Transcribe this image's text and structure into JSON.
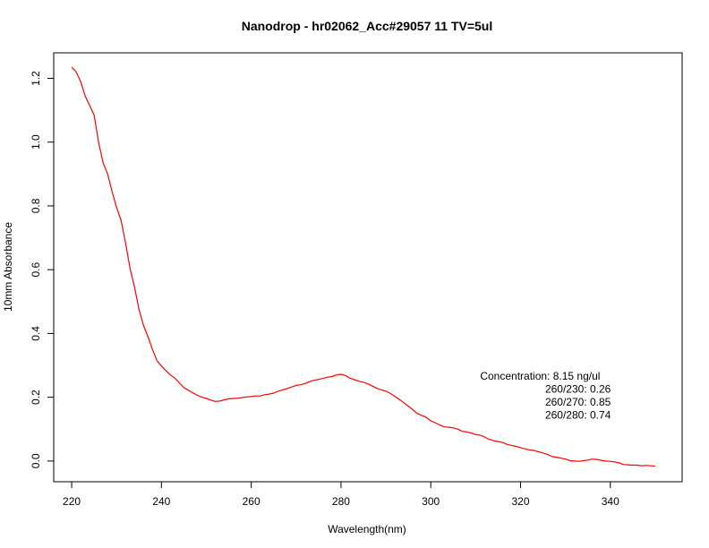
{
  "chart_data": {
    "type": "line",
    "title": "Nanodrop - hr02062_Acc#29057 11 TV=5ul",
    "xlabel": "Wavelength(nm)",
    "ylabel": "10mm Absorbance",
    "xlim": [
      216,
      356
    ],
    "ylim": [
      -0.065,
      1.28
    ],
    "xticks": [
      220,
      240,
      260,
      280,
      300,
      320,
      340
    ],
    "yticks": [
      0.0,
      0.2,
      0.4,
      0.6,
      0.8,
      1.0,
      1.2
    ],
    "xtick_labels": [
      "220",
      "240",
      "260",
      "280",
      "300",
      "320",
      "340"
    ],
    "ytick_labels": [
      "0.0",
      "0.2",
      "0.4",
      "0.6",
      "0.8",
      "1.0",
      "1.2"
    ],
    "grid": false,
    "series": [
      {
        "color": "#ff0000",
        "points": [
          [
            220,
            1.235
          ],
          [
            221,
            1.22
          ],
          [
            222,
            1.19
          ],
          [
            223,
            1.145
          ],
          [
            224,
            1.115
          ],
          [
            225,
            1.085
          ],
          [
            226,
            1.0
          ],
          [
            227,
            0.935
          ],
          [
            228,
            0.9
          ],
          [
            229,
            0.845
          ],
          [
            230,
            0.795
          ],
          [
            231,
            0.755
          ],
          [
            232,
            0.685
          ],
          [
            233,
            0.605
          ],
          [
            234,
            0.545
          ],
          [
            235,
            0.475
          ],
          [
            236,
            0.425
          ],
          [
            237,
            0.39
          ],
          [
            238,
            0.35
          ],
          [
            239,
            0.315
          ],
          [
            240,
            0.298
          ],
          [
            241,
            0.283
          ],
          [
            242,
            0.27
          ],
          [
            243,
            0.26
          ],
          [
            244,
            0.245
          ],
          [
            245,
            0.23
          ],
          [
            246,
            0.222
          ],
          [
            247,
            0.214
          ],
          [
            248,
            0.206
          ],
          [
            249,
            0.2
          ],
          [
            250,
            0.196
          ],
          [
            251,
            0.191
          ],
          [
            252,
            0.187
          ],
          [
            253,
            0.188
          ],
          [
            254,
            0.192
          ],
          [
            255,
            0.195
          ],
          [
            256,
            0.196
          ],
          [
            257,
            0.197
          ],
          [
            258,
            0.199
          ],
          [
            259,
            0.201
          ],
          [
            260,
            0.202
          ],
          [
            261,
            0.204
          ],
          [
            262,
            0.204
          ],
          [
            263,
            0.208
          ],
          [
            264,
            0.21
          ],
          [
            265,
            0.213
          ],
          [
            266,
            0.219
          ],
          [
            267,
            0.223
          ],
          [
            268,
            0.227
          ],
          [
            269,
            0.232
          ],
          [
            270,
            0.237
          ],
          [
            271,
            0.239
          ],
          [
            272,
            0.243
          ],
          [
            273,
            0.249
          ],
          [
            274,
            0.253
          ],
          [
            275,
            0.256
          ],
          [
            276,
            0.259
          ],
          [
            277,
            0.263
          ],
          [
            278,
            0.265
          ],
          [
            279,
            0.27
          ],
          [
            280,
            0.272
          ],
          [
            281,
            0.268
          ],
          [
            282,
            0.26
          ],
          [
            283,
            0.255
          ],
          [
            284,
            0.25
          ],
          [
            285,
            0.247
          ],
          [
            286,
            0.242
          ],
          [
            287,
            0.235
          ],
          [
            288,
            0.228
          ],
          [
            289,
            0.223
          ],
          [
            290,
            0.219
          ],
          [
            291,
            0.212
          ],
          [
            292,
            0.203
          ],
          [
            293,
            0.193
          ],
          [
            294,
            0.183
          ],
          [
            295,
            0.172
          ],
          [
            296,
            0.161
          ],
          [
            297,
            0.149
          ],
          [
            298,
            0.143
          ],
          [
            299,
            0.137
          ],
          [
            300,
            0.126
          ],
          [
            301,
            0.12
          ],
          [
            302,
            0.113
          ],
          [
            303,
            0.107
          ],
          [
            304,
            0.106
          ],
          [
            305,
            0.104
          ],
          [
            306,
            0.1
          ],
          [
            307,
            0.093
          ],
          [
            308,
            0.091
          ],
          [
            309,
            0.088
          ],
          [
            310,
            0.083
          ],
          [
            311,
            0.081
          ],
          [
            312,
            0.075
          ],
          [
            313,
            0.068
          ],
          [
            314,
            0.064
          ],
          [
            315,
            0.061
          ],
          [
            316,
            0.058
          ],
          [
            317,
            0.052
          ],
          [
            318,
            0.049
          ],
          [
            319,
            0.046
          ],
          [
            320,
            0.042
          ],
          [
            321,
            0.038
          ],
          [
            322,
            0.035
          ],
          [
            323,
            0.033
          ],
          [
            324,
            0.029
          ],
          [
            325,
            0.025
          ],
          [
            326,
            0.021
          ],
          [
            327,
            0.014
          ],
          [
            328,
            0.012
          ],
          [
            329,
            0.009
          ],
          [
            330,
            0.006
          ],
          [
            331,
            0.001
          ],
          [
            332,
            0.0
          ],
          [
            333,
            -0.001
          ],
          [
            334,
            0.001
          ],
          [
            335,
            0.003
          ],
          [
            336,
            0.006
          ],
          [
            337,
            0.005
          ],
          [
            338,
            0.002
          ],
          [
            339,
            0.0
          ],
          [
            340,
            -0.001
          ],
          [
            341,
            -0.003
          ],
          [
            342,
            -0.006
          ],
          [
            343,
            -0.011
          ],
          [
            344,
            -0.012
          ],
          [
            345,
            -0.013
          ],
          [
            346,
            -0.013
          ],
          [
            347,
            -0.015
          ],
          [
            348,
            -0.014
          ],
          [
            349,
            -0.015
          ],
          [
            350,
            -0.016
          ]
        ]
      }
    ],
    "annotations": [
      "Concentration: 8.15 ng/ul",
      "260/230: 0.26",
      "260/270: 0.85",
      "260/280: 0.74"
    ],
    "annotation_anchor": [
      311,
      0.255
    ]
  }
}
